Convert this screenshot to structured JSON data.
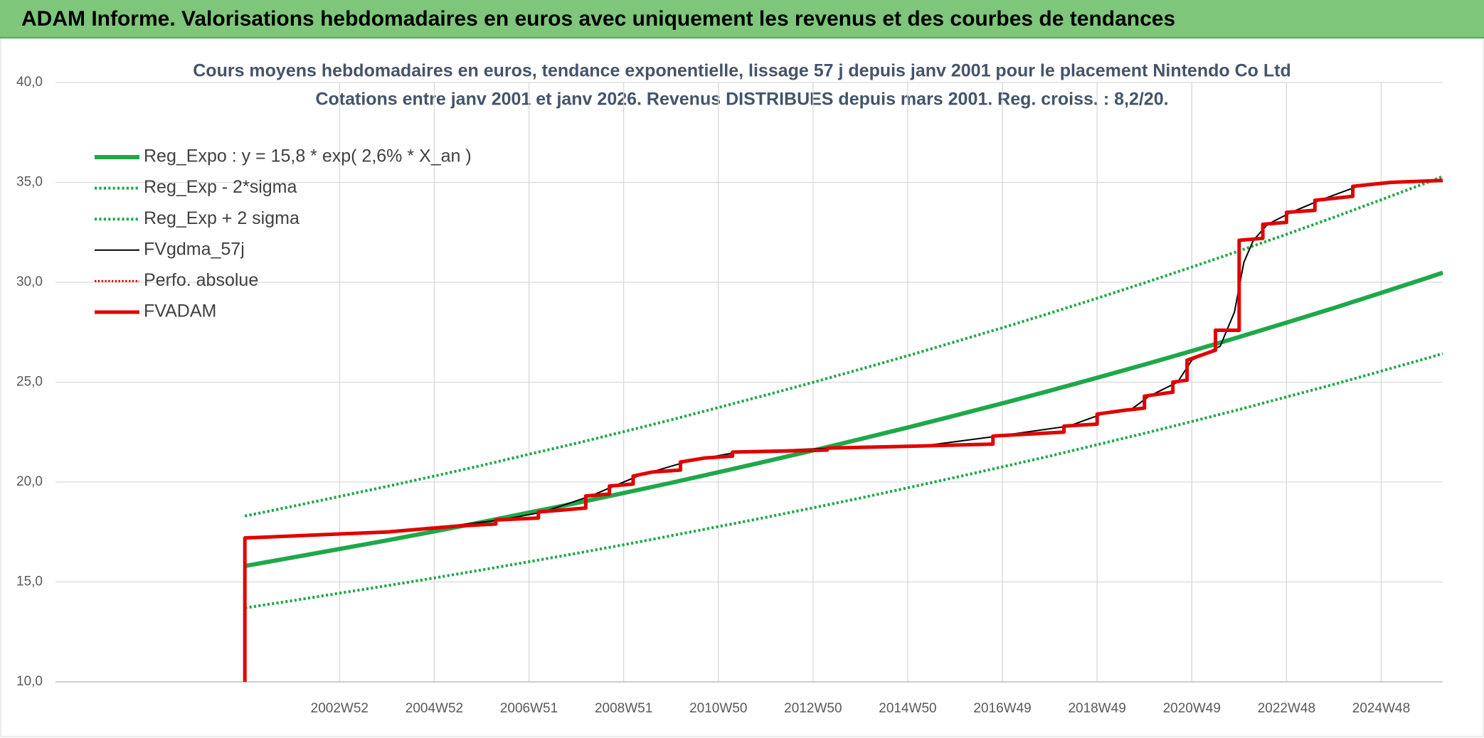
{
  "header": {
    "title": "ADAM Informe. Valorisations hebdomadaires en euros avec uniquement les revenus et des courbes de tendances"
  },
  "chart_data": {
    "type": "line",
    "title": "Cours moyens hebdomadaires en euros, tendance exponentielle, lissage 57 j depuis janv 2001 pour le placement Nintendo Co Ltd",
    "subtitle": "Cotations entre janv 2001 et janv 2026. Revenus DISTRIBUES depuis mars 2001. Reg. croiss. : 8,2/20.",
    "xlim": [
      1997,
      2026.3
    ],
    "ylim": [
      10,
      40
    ],
    "yticks": [
      {
        "value": 10,
        "label": "10,0"
      },
      {
        "value": 15,
        "label": "15,0"
      },
      {
        "value": 20,
        "label": "20,0"
      },
      {
        "value": 25,
        "label": "25,0"
      },
      {
        "value": 30,
        "label": "30,0"
      },
      {
        "value": 35,
        "label": "35,0"
      },
      {
        "value": 40,
        "label": "40,0"
      }
    ],
    "xticks": [
      {
        "value": 2003,
        "label": "2002W52"
      },
      {
        "value": 2005,
        "label": "2004W52"
      },
      {
        "value": 2007,
        "label": "2006W51"
      },
      {
        "value": 2009,
        "label": "2008W51"
      },
      {
        "value": 2011,
        "label": "2010W50"
      },
      {
        "value": 2013,
        "label": "2012W50"
      },
      {
        "value": 2015,
        "label": "2014W50"
      },
      {
        "value": 2017,
        "label": "2016W49"
      },
      {
        "value": 2019,
        "label": "2018W49"
      },
      {
        "value": 2021,
        "label": "2020W49"
      },
      {
        "value": 2023,
        "label": "2022W48"
      },
      {
        "value": 2025,
        "label": "2024W48"
      }
    ],
    "grid": true,
    "series": [
      {
        "name": "Reg_Expo : y = 15,8 * exp( 2,6% *  X_an )",
        "color": "#1fa84a",
        "style": "solid",
        "line_width": 6,
        "x": [
          2001,
          2002,
          2003,
          2004,
          2005,
          2006,
          2007,
          2008,
          2009,
          2010,
          2011,
          2012,
          2013,
          2014,
          2015,
          2016,
          2017,
          2018,
          2019,
          2020,
          2021,
          2022,
          2023,
          2024,
          2025,
          2026,
          2026.3
        ],
        "values": [
          15.8,
          16.22,
          16.65,
          17.08,
          17.53,
          17.99,
          18.47,
          18.95,
          19.45,
          19.96,
          20.49,
          21.03,
          21.58,
          22.15,
          22.73,
          23.33,
          23.94,
          24.57,
          25.22,
          25.88,
          26.56,
          27.26,
          27.98,
          28.71,
          29.47,
          30.24,
          30.48
        ]
      },
      {
        "name": "Reg_Exp - 2*sigma",
        "color": "#1fa84a",
        "style": "dotted",
        "line_width": 4,
        "x": [
          2001,
          2002,
          2003,
          2004,
          2005,
          2006,
          2007,
          2008,
          2009,
          2010,
          2011,
          2012,
          2013,
          2014,
          2015,
          2016,
          2017,
          2018,
          2019,
          2020,
          2021,
          2022,
          2023,
          2024,
          2025,
          2026,
          2026.3
        ],
        "values": [
          13.7,
          14.06,
          14.44,
          14.81,
          15.2,
          15.6,
          16.01,
          16.43,
          16.86,
          17.31,
          17.77,
          18.23,
          18.71,
          19.2,
          19.71,
          20.23,
          20.76,
          21.3,
          21.87,
          22.44,
          23.03,
          23.63,
          24.26,
          24.89,
          25.55,
          26.22,
          26.43
        ]
      },
      {
        "name": "Reg_Exp + 2 sigma",
        "color": "#1fa84a",
        "style": "dotted",
        "line_width": 4,
        "x": [
          2001,
          2002,
          2003,
          2004,
          2005,
          2006,
          2007,
          2008,
          2009,
          2010,
          2011,
          2012,
          2013,
          2014,
          2015,
          2016,
          2017,
          2018,
          2019,
          2020,
          2021,
          2022,
          2023,
          2024,
          2025,
          2026,
          2026.3
        ],
        "values": [
          18.3,
          18.78,
          19.28,
          19.78,
          20.3,
          20.83,
          21.39,
          21.94,
          22.52,
          23.11,
          23.73,
          24.35,
          24.99,
          25.65,
          26.32,
          27.02,
          27.72,
          28.45,
          29.2,
          29.97,
          30.76,
          31.57,
          32.4,
          33.25,
          34.13,
          35.02,
          35.3
        ]
      },
      {
        "name": "FVgdma_57j",
        "color": "#000000",
        "style": "solid",
        "line_width": 2,
        "x": [
          2001.1,
          2003,
          2005,
          2006.4,
          2007.3,
          2008.3,
          2009.3,
          2010.3,
          2011.4,
          2013.4,
          2015.3,
          2016.9,
          2018.4,
          2019.1,
          2019.7,
          2020.1,
          2020.7,
          2021.0,
          2021.6,
          2021.9,
          2022.1,
          2022.3,
          2022.6,
          2023.1,
          2023.7,
          2024.5,
          2025.3,
          2026.3
        ],
        "values": [
          17.2,
          17.4,
          17.7,
          18.1,
          18.5,
          19.3,
          20.3,
          21.0,
          21.5,
          21.7,
          21.8,
          22.3,
          22.8,
          23.4,
          23.6,
          24.3,
          25.0,
          26.1,
          26.8,
          28.5,
          31.0,
          32.1,
          32.9,
          33.5,
          34.1,
          34.8,
          35.0,
          35.1
        ]
      },
      {
        "name": "Perfo. absolue",
        "color": "#e00000",
        "style": "dotted",
        "line_width": 3,
        "x": [],
        "values": []
      },
      {
        "name": "FVADAM",
        "color": "#e00000",
        "style": "solid",
        "line_width": 5,
        "x": [
          2001,
          2001,
          2002,
          2003,
          2004,
          2005,
          2005.5,
          2006.3,
          2006.3,
          2007.2,
          2007.2,
          2007.7,
          2008.2,
          2008.2,
          2008.7,
          2008.7,
          2009.2,
          2009.2,
          2009.6,
          2010.2,
          2010.2,
          2010.7,
          2011.3,
          2011.3,
          2013.3,
          2013.3,
          2015.2,
          2016.8,
          2016.8,
          2018.3,
          2018.3,
          2019,
          2019,
          2019.6,
          2020,
          2020,
          2020.6,
          2020.6,
          2020.9,
          2020.9,
          2021.5,
          2021.5,
          2022,
          2022,
          2022.5,
          2022.5,
          2023,
          2023,
          2023.6,
          2023.6,
          2024.4,
          2024.4,
          2025.2,
          2026.3
        ],
        "values": [
          10,
          17.2,
          17.3,
          17.4,
          17.5,
          17.7,
          17.8,
          17.9,
          18.1,
          18.2,
          18.5,
          18.6,
          18.7,
          19.3,
          19.4,
          19.8,
          19.9,
          20.3,
          20.5,
          20.6,
          21.0,
          21.2,
          21.3,
          21.5,
          21.6,
          21.7,
          21.8,
          21.9,
          22.3,
          22.5,
          22.8,
          22.9,
          23.4,
          23.6,
          23.7,
          24.3,
          24.5,
          25.0,
          25.1,
          26.1,
          26.6,
          27.6,
          27.6,
          32.1,
          32.2,
          32.9,
          33.0,
          33.5,
          33.6,
          34.1,
          34.3,
          34.8,
          35.0,
          35.1
        ]
      }
    ]
  }
}
